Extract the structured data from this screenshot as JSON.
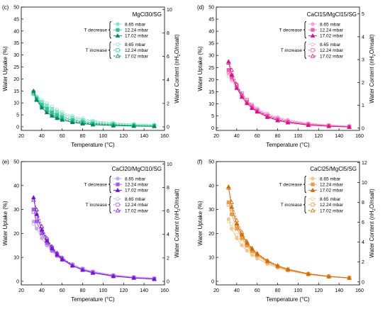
{
  "chart_data": [
    {
      "panel_label": "(c)",
      "type": "line",
      "title": "MgCl30/SG",
      "xlabel": "Temperature (°C)",
      "ylabel": "Water Uptake (%)",
      "y2label_parts": [
        "Water Content (nH",
        "2",
        "O/nsalt)"
      ],
      "xlim": [
        20,
        160
      ],
      "xticks": [
        20,
        40,
        60,
        80,
        100,
        120,
        140,
        160
      ],
      "ylim": [
        -1.5,
        50
      ],
      "yticks": [
        0,
        5,
        10,
        15,
        20,
        25,
        30,
        35,
        40,
        45,
        50
      ],
      "y2lim": [
        -0.3,
        10.2
      ],
      "y2ticks": [
        0,
        2,
        4,
        6,
        8,
        10
      ],
      "legend_position": "top-right",
      "legend_groups": [
        "T decrease",
        "T increase"
      ],
      "colors": {
        "light": "#7fe3c8",
        "medium": "#2ec496",
        "dark": "#00875a"
      },
      "series": [
        {
          "name": "8.65 mbar",
          "group": "T decrease",
          "marker": "circle",
          "tone": "light",
          "dash": false,
          "x": [
            32,
            35,
            40,
            45,
            50,
            55,
            60,
            70,
            80,
            90,
            110,
            130,
            150
          ],
          "y": [
            14,
            12.5,
            10.5,
            9,
            7.6,
            6.4,
            5.4,
            4.0,
            3.0,
            2.2,
            1.5,
            1.1,
            0.9
          ]
        },
        {
          "name": "12.24 mbar",
          "group": "T decrease",
          "marker": "square",
          "tone": "medium",
          "dash": false,
          "x": [
            32,
            35,
            40,
            45,
            50,
            55,
            60,
            70,
            80,
            90,
            110,
            130,
            150
          ],
          "y": [
            14.5,
            11.8,
            9.2,
            7.5,
            6.0,
            4.9,
            4.0,
            2.8,
            2.0,
            1.4,
            0.9,
            0.6,
            0.4
          ]
        },
        {
          "name": "17.02 mbar",
          "group": "T decrease",
          "marker": "triangle",
          "tone": "dark",
          "dash": false,
          "x": [
            32,
            35,
            40,
            45,
            50,
            55,
            60,
            70,
            80,
            90,
            110,
            130,
            150
          ],
          "y": [
            15,
            11.2,
            8.0,
            6.0,
            4.6,
            3.6,
            2.9,
            1.9,
            1.3,
            0.9,
            0.5,
            0.3,
            0.2
          ]
        },
        {
          "name": "8.65 mbar",
          "group": "T increase",
          "marker": "circle",
          "tone": "light",
          "dash": true,
          "x": [
            32,
            35,
            40,
            45,
            50,
            55,
            60,
            70,
            80,
            90,
            110,
            130,
            150
          ],
          "y": [
            13.5,
            12.8,
            11.2,
            9.8,
            8.5,
            7.2,
            6.1,
            4.6,
            3.5,
            2.6,
            1.7,
            1.2,
            0.9
          ]
        },
        {
          "name": "12.24 mbar",
          "group": "T increase",
          "marker": "square",
          "tone": "medium",
          "dash": true,
          "x": [
            32,
            35,
            40,
            45,
            50,
            55,
            60,
            70,
            80,
            90,
            110,
            130,
            150
          ],
          "y": [
            13.8,
            12.0,
            10.0,
            8.2,
            6.8,
            5.6,
            4.6,
            3.3,
            2.4,
            1.7,
            1.1,
            0.7,
            0.5
          ]
        },
        {
          "name": "17.02 mbar",
          "group": "T increase",
          "marker": "triangle",
          "tone": "dark",
          "dash": true,
          "x": [
            32,
            35,
            40,
            45,
            50,
            55,
            60,
            70,
            80,
            90,
            110,
            130,
            150
          ],
          "y": [
            14.2,
            11.5,
            8.8,
            6.8,
            5.3,
            4.2,
            3.4,
            2.3,
            1.6,
            1.1,
            0.6,
            0.4,
            0.3
          ]
        }
      ]
    },
    {
      "panel_label": "(d)",
      "type": "line",
      "title": "CaCl15/MgCl15/SG",
      "xlabel": "Temperature (°C)",
      "ylabel": "Water Uptake (%)",
      "y2label_parts": [
        "Water Content (nH",
        "2",
        "O/nsalt)"
      ],
      "xlim": [
        20,
        160
      ],
      "xticks": [
        20,
        40,
        60,
        80,
        100,
        120,
        140,
        160
      ],
      "ylim": [
        -1,
        50
      ],
      "yticks": [
        0,
        5,
        10,
        15,
        20,
        25,
        30,
        35,
        40,
        45,
        50
      ],
      "y2lim": [
        -0.1,
        5.3
      ],
      "y2ticks": [
        0,
        1,
        2,
        3,
        4,
        5
      ],
      "legend_position": "top-right",
      "legend_groups": [
        "T decrease",
        "T increase"
      ],
      "colors": {
        "light": "#f5a3d0",
        "medium": "#eb5fae",
        "dark": "#dd0f8a"
      },
      "series": [
        {
          "name": "8.65 mbar",
          "group": "T decrease",
          "marker": "circle",
          "tone": "light",
          "dash": false,
          "x": [
            32,
            35,
            40,
            45,
            50,
            55,
            60,
            70,
            80,
            90,
            110,
            130,
            150
          ],
          "y": [
            22.5,
            20,
            16.5,
            13.5,
            11,
            9.2,
            7.8,
            5.6,
            4.2,
            3.2,
            1.9,
            1.2,
            0.8
          ]
        },
        {
          "name": "12.24 mbar",
          "group": "T decrease",
          "marker": "square",
          "tone": "medium",
          "dash": false,
          "x": [
            32,
            35,
            40,
            45,
            50,
            55,
            60,
            70,
            80,
            90,
            110,
            130,
            150
          ],
          "y": [
            24,
            21,
            17,
            13.5,
            10.8,
            8.8,
            7.2,
            5.0,
            3.6,
            2.6,
            1.5,
            0.9,
            0.5
          ]
        },
        {
          "name": "17.02 mbar",
          "group": "T decrease",
          "marker": "triangle",
          "tone": "dark",
          "dash": false,
          "x": [
            32,
            35,
            40,
            45,
            50,
            55,
            60,
            70,
            80,
            90,
            110,
            130,
            150
          ],
          "y": [
            27.5,
            22,
            16.5,
            12.8,
            10.2,
            8.2,
            6.7,
            4.5,
            3.1,
            2.2,
            1.2,
            0.7,
            0.4
          ]
        },
        {
          "name": "8.65 mbar",
          "group": "T increase",
          "marker": "circle",
          "tone": "light",
          "dash": true,
          "x": [
            32,
            35,
            40,
            45,
            50,
            55,
            60,
            70,
            80,
            90,
            110,
            130,
            150
          ],
          "y": [
            21.5,
            19.5,
            16.8,
            14.2,
            11.8,
            9.8,
            8.2,
            6.0,
            4.5,
            3.4,
            2.0,
            1.3,
            0.9
          ]
        },
        {
          "name": "12.24 mbar",
          "group": "T increase",
          "marker": "square",
          "tone": "medium",
          "dash": true,
          "x": [
            32,
            35,
            40,
            45,
            50,
            55,
            60,
            70,
            80,
            90,
            110,
            130,
            150
          ],
          "y": [
            23,
            21.5,
            17.8,
            14.3,
            11.5,
            9.3,
            7.6,
            5.3,
            3.9,
            2.8,
            1.6,
            1.0,
            0.6
          ]
        },
        {
          "name": "17.02 mbar",
          "group": "T increase",
          "marker": "triangle",
          "tone": "dark",
          "dash": true,
          "x": [
            32,
            35,
            40,
            45,
            50,
            55,
            60,
            70,
            80,
            90,
            110,
            130,
            150
          ],
          "y": [
            27,
            24,
            18,
            13.8,
            10.8,
            8.6,
            7.0,
            4.8,
            3.3,
            2.3,
            1.3,
            0.8,
            0.4
          ]
        }
      ]
    },
    {
      "panel_label": "(e)",
      "type": "line",
      "title": "CaCl20/MgCl10/SG",
      "xlabel": "Temperature (°C)",
      "ylabel": "Water Uptake (%)",
      "y2label_parts": [
        "Water Content (nH",
        "2",
        "O/nsalt)"
      ],
      "xlim": [
        20,
        160
      ],
      "xticks": [
        20,
        40,
        60,
        80,
        100,
        120,
        140,
        160
      ],
      "ylim": [
        -1.5,
        50
      ],
      "yticks": [
        0,
        10,
        20,
        30,
        40,
        50
      ],
      "y2lim": [
        -0.3,
        10.2
      ],
      "y2ticks": [
        0,
        2,
        4,
        6,
        8,
        10
      ],
      "legend_position": "top-right",
      "legend_groups": [
        "T decrease",
        "T increase"
      ],
      "colors": {
        "light": "#c9a6f2",
        "medium": "#a25ce6",
        "dark": "#7510d8"
      },
      "series": [
        {
          "name": "8.65 mbar",
          "group": "T decrease",
          "marker": "circle",
          "tone": "light",
          "dash": false,
          "x": [
            32,
            35,
            40,
            45,
            50,
            55,
            60,
            70,
            80,
            90,
            110,
            130,
            150
          ],
          "y": [
            25,
            22,
            18,
            15,
            12.5,
            10.5,
            9.0,
            6.8,
            5.2,
            4.0,
            2.6,
            1.8,
            1.3
          ]
        },
        {
          "name": "12.24 mbar",
          "group": "T decrease",
          "marker": "square",
          "tone": "medium",
          "dash": false,
          "x": [
            32,
            35,
            40,
            45,
            50,
            55,
            60,
            70,
            80,
            90,
            110,
            130,
            150
          ],
          "y": [
            30,
            25,
            20,
            16,
            13,
            10.8,
            9.0,
            6.5,
            4.9,
            3.7,
            2.3,
            1.5,
            1.0
          ]
        },
        {
          "name": "17.02 mbar",
          "group": "T decrease",
          "marker": "triangle",
          "tone": "dark",
          "dash": false,
          "x": [
            32,
            35,
            40,
            45,
            50,
            55,
            60,
            70,
            80,
            90,
            110,
            130,
            150
          ],
          "y": [
            35,
            28,
            21.5,
            17,
            13.8,
            11.2,
            9.2,
            6.5,
            4.7,
            3.5,
            2.1,
            1.4,
            0.9
          ]
        },
        {
          "name": "8.65 mbar",
          "group": "T increase",
          "marker": "circle",
          "tone": "light",
          "dash": true,
          "x": [
            32,
            35,
            40,
            45,
            50,
            55,
            60,
            70,
            80,
            90,
            110,
            130,
            150
          ],
          "y": [
            24,
            23,
            19.5,
            16,
            13.2,
            11,
            9.4,
            7.0,
            5.4,
            4.2,
            2.7,
            1.9,
            1.4
          ]
        },
        {
          "name": "12.24 mbar",
          "group": "T increase",
          "marker": "square",
          "tone": "medium",
          "dash": true,
          "x": [
            32,
            35,
            40,
            45,
            50,
            55,
            60,
            70,
            80,
            90,
            110,
            130,
            150
          ],
          "y": [
            29,
            27,
            22,
            17.5,
            14,
            11.5,
            9.6,
            7.0,
            5.2,
            3.9,
            2.4,
            1.6,
            1.1
          ]
        },
        {
          "name": "17.02 mbar",
          "group": "T increase",
          "marker": "triangle",
          "tone": "dark",
          "dash": true,
          "x": [
            32,
            35,
            40,
            45,
            50,
            55,
            60,
            70,
            80,
            90,
            110,
            130,
            150
          ],
          "y": [
            34,
            30,
            23,
            18,
            14.5,
            11.8,
            9.8,
            6.9,
            5.0,
            3.7,
            2.2,
            1.4,
            0.9
          ]
        }
      ]
    },
    {
      "panel_label": "(f)",
      "type": "line",
      "title": "CaCl25/MgCl5/SG",
      "xlabel": "Temperature (°C)",
      "ylabel": "Water Uptake (%)",
      "y2label_parts": [
        "Water Content (nH",
        "2",
        "O/nsalt)"
      ],
      "xlim": [
        20,
        160
      ],
      "xticks": [
        20,
        40,
        60,
        80,
        100,
        120,
        140,
        160
      ],
      "ylim": [
        -1.5,
        50
      ],
      "yticks": [
        0,
        10,
        20,
        30,
        40,
        50
      ],
      "y2lim": [
        -0.3,
        12.1
      ],
      "y2ticks": [
        0,
        2,
        4,
        6,
        8,
        10,
        12
      ],
      "legend_position": "top-right",
      "legend_groups": [
        "T decrease",
        "T increase"
      ],
      "colors": {
        "light": "#f6c38d",
        "medium": "#ec9a45",
        "dark": "#d26a06"
      },
      "series": [
        {
          "name": "8.65 mbar",
          "group": "T decrease",
          "marker": "circle",
          "tone": "light",
          "dash": false,
          "x": [
            32,
            35,
            40,
            45,
            50,
            55,
            60,
            70,
            80,
            90,
            110,
            130,
            150
          ],
          "y": [
            26,
            22,
            18,
            15,
            12.8,
            11,
            9.5,
            7.2,
            5.6,
            4.4,
            2.8,
            1.9,
            1.3
          ]
        },
        {
          "name": "12.24 mbar",
          "group": "T decrease",
          "marker": "square",
          "tone": "medium",
          "dash": false,
          "x": [
            32,
            35,
            40,
            45,
            50,
            55,
            60,
            70,
            80,
            90,
            110,
            130,
            150
          ],
          "y": [
            33,
            28,
            22,
            18,
            15,
            12.6,
            10.8,
            8.0,
            6.1,
            4.7,
            3.0,
            2.0,
            1.4
          ]
        },
        {
          "name": "17.02 mbar",
          "group": "T decrease",
          "marker": "triangle",
          "tone": "dark",
          "dash": false,
          "x": [
            32,
            35,
            40,
            45,
            50,
            55,
            60,
            70,
            80,
            90,
            110,
            130,
            150
          ],
          "y": [
            39.5,
            31,
            24,
            19.5,
            16,
            13.4,
            11.4,
            8.5,
            6.5,
            5.0,
            3.1,
            2.0,
            1.4
          ]
        },
        {
          "name": "8.65 mbar",
          "group": "T increase",
          "marker": "circle",
          "tone": "light",
          "dash": true,
          "x": [
            32,
            35,
            40,
            45,
            50,
            55,
            60,
            70,
            80,
            90,
            110,
            130,
            150
          ],
          "y": [
            25,
            24,
            19.5,
            16.2,
            13.5,
            11.5,
            9.9,
            7.5,
            5.8,
            4.6,
            2.9,
            2.0,
            1.4
          ]
        },
        {
          "name": "12.24 mbar",
          "group": "T increase",
          "marker": "square",
          "tone": "medium",
          "dash": true,
          "x": [
            32,
            35,
            40,
            45,
            50,
            55,
            60,
            70,
            80,
            90,
            110,
            130,
            150
          ],
          "y": [
            32,
            30,
            23.5,
            19,
            15.6,
            13,
            11.1,
            8.2,
            6.3,
            4.9,
            3.1,
            2.1,
            1.5
          ]
        },
        {
          "name": "17.02 mbar",
          "group": "T increase",
          "marker": "triangle",
          "tone": "dark",
          "dash": true,
          "x": [
            32,
            35,
            40,
            45,
            50,
            55,
            60,
            70,
            80,
            90,
            110,
            130,
            150
          ],
          "y": [
            39,
            33,
            25.5,
            20.5,
            16.6,
            13.8,
            11.7,
            8.7,
            6.6,
            5.1,
            3.2,
            2.1,
            1.5
          ]
        }
      ]
    }
  ]
}
